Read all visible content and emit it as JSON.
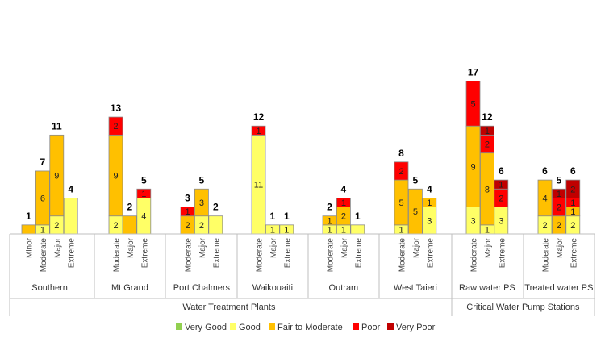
{
  "chart_data": {
    "type": "stacked-bar",
    "title": "",
    "xlabel": "",
    "ylabel": "",
    "ylim": [
      0,
      17
    ],
    "grid": false,
    "legend_position": "bottom",
    "stack_order": [
      "Very Good",
      "Good",
      "Fair to Moderate",
      "Poor",
      "Very Poor"
    ],
    "colors": {
      "Very Good": "#92d050",
      "Good": "#ffff66",
      "Fair to Moderate": "#ffc000",
      "Poor": "#ff0000",
      "Very Poor": "#c00000"
    },
    "groups": [
      {
        "name": "Southern",
        "bars": [
          {
            "category": "Minor",
            "values": {
              "Fair to Moderate": 1
            },
            "total": 1,
            "show_labels": false
          },
          {
            "category": "Moderate",
            "values": {
              "Good": 1,
              "Fair to Moderate": 6
            },
            "total": 7
          },
          {
            "category": "Major",
            "values": {
              "Good": 2,
              "Fair to Moderate": 9
            },
            "total": 11
          },
          {
            "category": "Extreme",
            "values": {
              "Good": 4
            },
            "total": 4,
            "show_labels": false
          }
        ]
      },
      {
        "name": "Mt Grand",
        "bars": [
          {
            "category": "Moderate",
            "values": {
              "Good": 2,
              "Fair to Moderate": 9,
              "Poor": 2
            },
            "total": 13
          },
          {
            "category": "Major",
            "values": {
              "Fair to Moderate": 2
            },
            "total": 2,
            "show_labels": false
          },
          {
            "category": "Extreme",
            "values": {
              "Good": 4,
              "Poor": 1
            },
            "total": 5
          }
        ]
      },
      {
        "name": "Port Chalmers",
        "bars": [
          {
            "category": "Moderate",
            "values": {
              "Fair to Moderate": 2,
              "Poor": 1
            },
            "total": 3
          },
          {
            "category": "Major",
            "values": {
              "Good": 2,
              "Fair to Moderate": 3
            },
            "total": 5
          },
          {
            "category": "Extreme",
            "values": {
              "Good": 2
            },
            "total": 2,
            "show_labels": false
          }
        ]
      },
      {
        "name": "Waikouaiti",
        "bars": [
          {
            "category": "Moderate",
            "values": {
              "Good": 11,
              "Poor": 1
            },
            "total": 12
          },
          {
            "category": "Major",
            "values": {
              "Good": 1
            },
            "total": 1
          },
          {
            "category": "Extreme",
            "values": {
              "Good": 1
            },
            "total": 1
          }
        ]
      },
      {
        "name": "Outram",
        "bars": [
          {
            "category": "Moderate",
            "values": {
              "Good": 1,
              "Fair to Moderate": 1
            },
            "total": 2
          },
          {
            "category": "Major",
            "values": {
              "Good": 1,
              "Fair to Moderate": 2,
              "Poor": 1
            },
            "total": 4
          },
          {
            "category": "Extreme",
            "values": {
              "Good": 1
            },
            "total": 1,
            "show_labels": false
          }
        ]
      },
      {
        "name": "West Taieri",
        "bars": [
          {
            "category": "Moderate",
            "values": {
              "Good": 1,
              "Fair to Moderate": 5,
              "Poor": 2
            },
            "total": 8
          },
          {
            "category": "Major",
            "values": {
              "Fair to Moderate": 5
            },
            "total": 5
          },
          {
            "category": "Extreme",
            "values": {
              "Good": 3,
              "Fair to Moderate": 1
            },
            "total": 4
          }
        ]
      },
      {
        "name": "Raw water PS",
        "bars": [
          {
            "category": "Moderate",
            "values": {
              "Good": 3,
              "Fair to Moderate": 9,
              "Poor": 5
            },
            "total": 17
          },
          {
            "category": "Major",
            "values": {
              "Good": 1,
              "Fair to Moderate": 8,
              "Poor": 2,
              "Very Poor": 1
            },
            "total": 12
          },
          {
            "category": "Extreme",
            "values": {
              "Good": 3,
              "Poor": 2,
              "Very Poor": 1
            },
            "total": 6
          }
        ]
      },
      {
        "name": "Treated water PS",
        "bars": [
          {
            "category": "Moderate",
            "values": {
              "Good": 2,
              "Fair to Moderate": 4
            },
            "total": 6
          },
          {
            "category": "Major",
            "values": {
              "Fair to Moderate": 2,
              "Poor": 2,
              "Very Poor": 1
            },
            "total": 5
          },
          {
            "category": "Extreme",
            "values": {
              "Good": 2,
              "Fair to Moderate": 1,
              "Poor": 1,
              "Very Poor": 2
            },
            "total": 6
          }
        ]
      }
    ],
    "supergroups": [
      {
        "name": "Water Treatment Plants",
        "groups": [
          "Southern",
          "Mt Grand",
          "Port Chalmers",
          "Waikouaiti",
          "Outram",
          "West Taieri"
        ]
      },
      {
        "name": "Critical Water Pump Stations",
        "groups": [
          "Raw water PS",
          "Treated water PS"
        ]
      }
    ]
  }
}
